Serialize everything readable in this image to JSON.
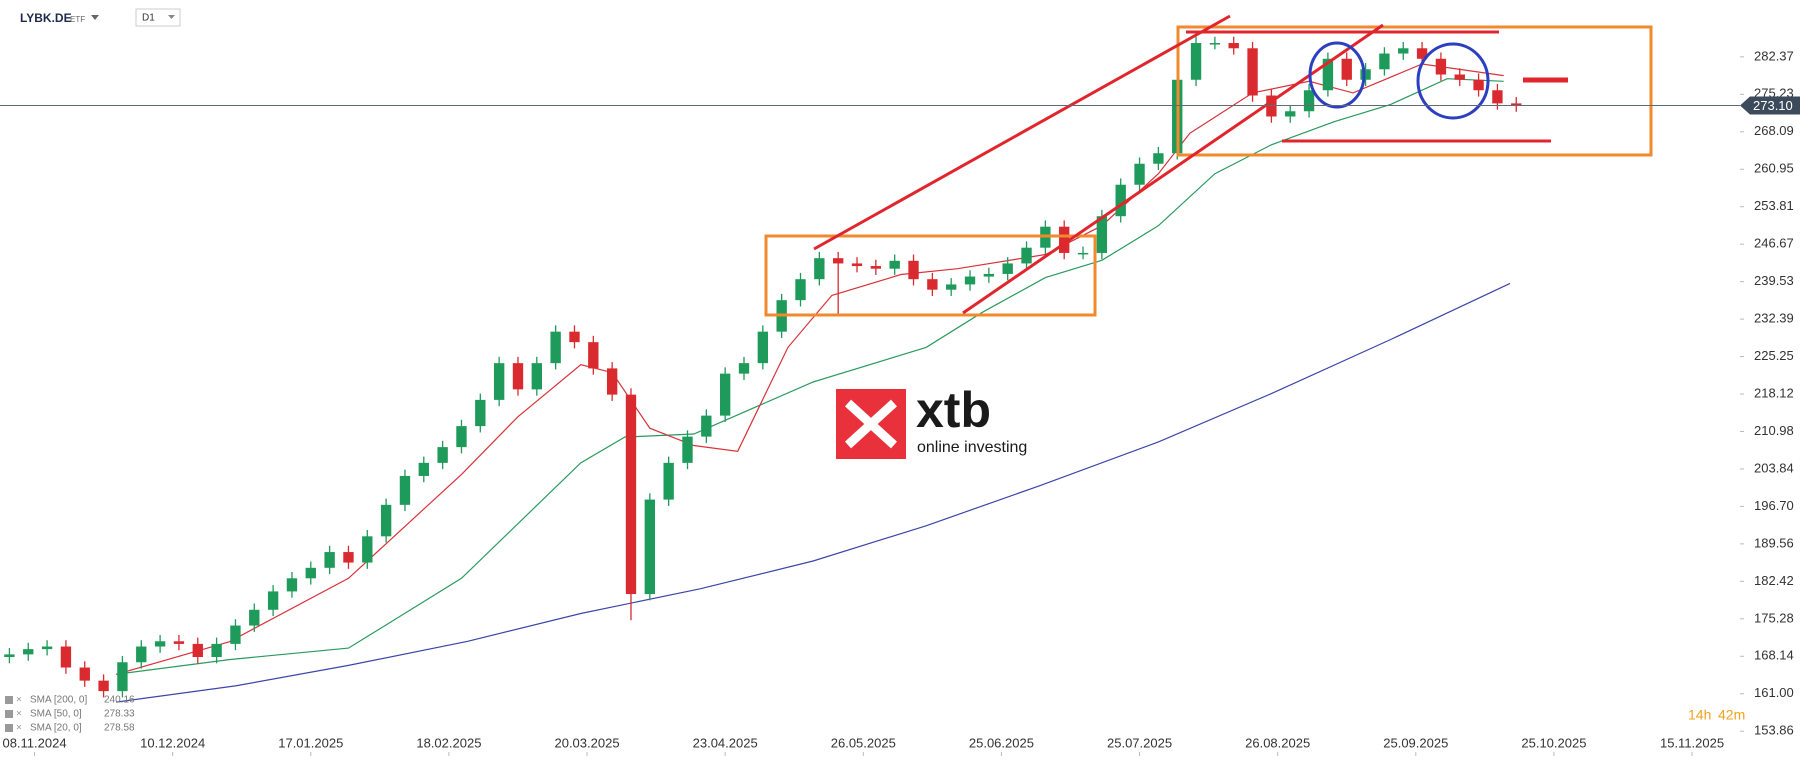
{
  "chart_data": {
    "type": "candlestick",
    "symbol": "LYBK.DE",
    "asset_class": "ETF",
    "timeframe": "D1",
    "up_color": "#1e9a5a",
    "down_color": "#d92a2f",
    "x": [
      0,
      3,
      6,
      9,
      12,
      15,
      18,
      21,
      24,
      27,
      30,
      33,
      36,
      39,
      42,
      45,
      48,
      51,
      54,
      57,
      60,
      63,
      66,
      69,
      72,
      75,
      78,
      81,
      84,
      87,
      90,
      93,
      96,
      99,
      102,
      105,
      108,
      111,
      114,
      117,
      120,
      123,
      126,
      129,
      132,
      135,
      138,
      141,
      144,
      147,
      150,
      153,
      156,
      159,
      162,
      165,
      168,
      171,
      174,
      177,
      180,
      183,
      186,
      189,
      192,
      195,
      198,
      201,
      204,
      207,
      210,
      213,
      216,
      219,
      222,
      225,
      228,
      231,
      234,
      237,
      240
    ],
    "open": [
      168,
      168.5,
      169.5,
      170,
      166,
      163.5,
      161.5,
      167,
      170,
      171,
      170.5,
      168,
      170.5,
      174,
      177,
      180.5,
      183,
      185,
      188,
      186,
      191,
      197,
      202.5,
      205,
      208,
      212,
      217,
      224,
      219,
      224,
      230,
      228,
      223,
      218,
      180,
      198,
      205,
      210,
      214,
      222,
      224,
      230,
      236,
      240,
      244,
      243,
      242.5,
      242,
      243.5,
      240,
      238,
      239,
      240.5,
      241,
      243,
      246,
      250,
      245,
      245,
      252,
      258,
      262,
      264,
      278,
      285,
      285,
      284,
      275,
      271,
      272,
      276,
      282,
      278,
      280,
      283,
      284,
      282,
      279,
      278,
      276,
      273.5
    ],
    "high": [
      169.7,
      170.7,
      171.2,
      171.2,
      167.2,
      164.7,
      168.2,
      171.2,
      172.2,
      172.2,
      171.7,
      171.7,
      175.2,
      178.2,
      181.7,
      184.2,
      186.2,
      189.2,
      189.2,
      192.2,
      198.2,
      203.7,
      206.2,
      209.2,
      213.2,
      218.2,
      225.2,
      225.2,
      225.2,
      231.2,
      231.2,
      229.2,
      224.2,
      219.2,
      199.2,
      206.2,
      211.2,
      215.2,
      223.2,
      225.2,
      231.2,
      237.2,
      241.2,
      245.2,
      245.2,
      244.2,
      243.7,
      244.7,
      244.7,
      241.2,
      240.2,
      241.7,
      242.2,
      244.2,
      247.2,
      251.2,
      251.2,
      246.2,
      253.2,
      259.2,
      263.2,
      265.2,
      279.2,
      286.2,
      286.2,
      286.2,
      285.2,
      276.2,
      273.2,
      277.2,
      283.2,
      283.2,
      281.2,
      284.2,
      285.2,
      285.2,
      283.2,
      280.2,
      279.2,
      277.2,
      274.7
    ],
    "low": [
      166.8,
      167.3,
      168.3,
      164.8,
      162.3,
      160.3,
      160.3,
      165.8,
      168.8,
      169.3,
      166.8,
      166.8,
      169.3,
      172.8,
      175.8,
      179.3,
      181.8,
      183.8,
      184.8,
      184.8,
      189.8,
      195.8,
      201.3,
      203.8,
      206.8,
      210.8,
      215.8,
      217.8,
      217.8,
      222.8,
      226.8,
      221.8,
      216.8,
      175,
      178.8,
      196.8,
      203.8,
      208.8,
      212.8,
      220.8,
      222.8,
      228.8,
      234.8,
      238.8,
      233,
      241.3,
      240.8,
      240.8,
      238.8,
      236.8,
      236.8,
      237.8,
      239.3,
      239.8,
      241.8,
      244.8,
      243.8,
      243.8,
      243.8,
      250.8,
      256.8,
      260.8,
      262.8,
      276.8,
      283.8,
      282.8,
      273.8,
      269.8,
      269.8,
      270.8,
      274.8,
      276.8,
      276.8,
      278.8,
      281.8,
      280.8,
      277.8,
      276.8,
      274.8,
      272.3,
      271.9
    ],
    "close": [
      168.5,
      169.5,
      170,
      166,
      163.5,
      161.5,
      167,
      170,
      171,
      170.5,
      168,
      170.5,
      174,
      177,
      180.5,
      183,
      185,
      188,
      186,
      191,
      197,
      202.5,
      205,
      208,
      212,
      217,
      224,
      219,
      224,
      230,
      228,
      223,
      218,
      180,
      198,
      205,
      210,
      214,
      222,
      224,
      230,
      236,
      240,
      244,
      243,
      242.5,
      242,
      243.5,
      240,
      238,
      239,
      240.5,
      241,
      243,
      246,
      250,
      245,
      245,
      252,
      258,
      262,
      264,
      278,
      285,
      285,
      284,
      275,
      271,
      272,
      276,
      282,
      278,
      280,
      283,
      284,
      282,
      279,
      278,
      276,
      273.5,
      273.1
    ],
    "series": [
      {
        "name": "SMA [200, 0]",
        "color": "#3c46a8",
        "last_value": 240.16,
        "x": [
          17,
          36,
          54,
          73,
          91,
          110,
          128,
          146,
          164,
          183,
          201,
          220,
          239
        ],
        "values": [
          159.4,
          162.5,
          166.4,
          171,
          176.3,
          181,
          186.3,
          193,
          200.6,
          209,
          218.2,
          228.5,
          239.2
        ]
      },
      {
        "name": "SMA [50, 0]",
        "color": "#2a9a5e",
        "last_value": 278.33,
        "x": [
          17,
          35,
          54,
          72,
          91,
          98,
          109,
          128,
          146,
          155,
          165,
          174,
          183,
          192,
          201,
          211,
          220,
          229,
          238
        ],
        "values": [
          164.7,
          167.5,
          169.7,
          183,
          205,
          209.9,
          210.5,
          220.4,
          227,
          233.7,
          240.3,
          243.6,
          250.2,
          260.1,
          265.6,
          270,
          273.3,
          278.2,
          277.7
        ]
      },
      {
        "name": "SMA [20, 0]",
        "color": "#d8333a",
        "last_value": 278.58,
        "x": [
          17,
          35,
          54,
          72,
          81,
          91,
          96,
          102,
          109,
          116,
          124,
          131,
          142,
          151,
          165,
          174,
          183,
          188,
          198,
          207,
          214,
          225,
          238
        ],
        "values": [
          164.7,
          170.9,
          183,
          202.8,
          213.8,
          223.7,
          222.2,
          211.6,
          208.3,
          207.2,
          227,
          236.9,
          240.9,
          242,
          244.7,
          250.2,
          260.1,
          267.8,
          275.5,
          277.7,
          275.5,
          281,
          278.8
        ]
      }
    ],
    "last_price": {
      "value": 273.1,
      "label": "273.10"
    },
    "ylim": [
      149.9,
      293.2
    ],
    "yticks": [
      153.86,
      {
        "value": 161,
        "label": "161.00"
      },
      168.14,
      175.28,
      182.42,
      189.56,
      {
        "value": 196.7,
        "label": "196.70"
      },
      203.84,
      210.98,
      218.12,
      225.25,
      232.39,
      239.53,
      246.67,
      253.81,
      260.95,
      268.09,
      275.23,
      282.37
    ],
    "xlim": [
      -1.5,
      275
    ],
    "xticks": [
      {
        "value": 4,
        "label": "08.11.2024"
      },
      {
        "value": 26,
        "label": "10.12.2024"
      },
      {
        "value": 48,
        "label": "17.01.2025"
      },
      {
        "value": 70,
        "label": "18.02.2025"
      },
      {
        "value": 92,
        "label": "20.03.2025"
      },
      {
        "value": 114,
        "label": "23.04.2025"
      },
      {
        "value": 136,
        "label": "26.05.2025"
      },
      {
        "value": 158,
        "label": "25.06.2025"
      },
      {
        "value": 180,
        "label": "25.07.2025"
      },
      {
        "value": 202,
        "label": "26.08.2025"
      },
      {
        "value": 224,
        "label": "25.09.2025"
      },
      {
        "value": 246,
        "label": "25.10.2025"
      },
      {
        "value": 268,
        "label": "15.11.2025"
      }
    ],
    "watermark": {
      "brand": "xtb",
      "tagline": "online investing"
    },
    "countdown_hours": "14h",
    "countdown_minutes": "42m"
  }
}
